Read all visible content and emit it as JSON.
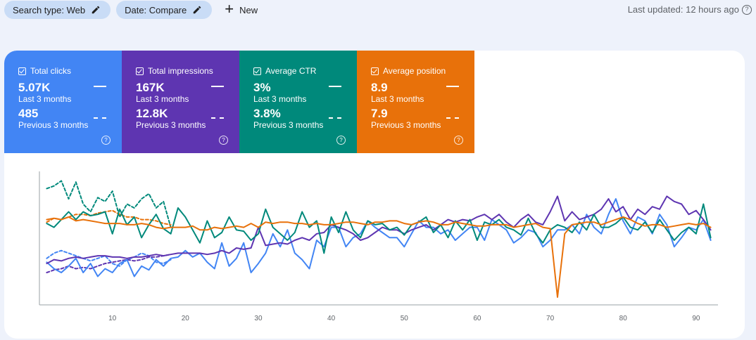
{
  "toolbar": {
    "search_type_label": "Search type: Web",
    "date_label": "Date: Compare",
    "new_label": "New",
    "last_updated": "Last updated: 12 hours ago"
  },
  "cards": [
    {
      "label": "Total clicks",
      "value": "5.07K",
      "period": "Last 3 months",
      "prev_value": "485",
      "prev_period": "Previous 3 months",
      "color": "#4285f4"
    },
    {
      "label": "Total impressions",
      "value": "167K",
      "period": "Last 3 months",
      "prev_value": "12.8K",
      "prev_period": "Previous 3 months",
      "color": "#5e35b1"
    },
    {
      "label": "Average CTR",
      "value": "3%",
      "period": "Last 3 months",
      "prev_value": "3.8%",
      "prev_period": "Previous 3 months",
      "color": "#00897b"
    },
    {
      "label": "Average position",
      "value": "8.9",
      "period": "Last 3 months",
      "prev_value": "7.9",
      "prev_period": "Previous 3 months",
      "color": "#e8710a"
    }
  ],
  "chart_data": {
    "type": "line",
    "xlim": [
      0,
      93
    ],
    "ylim": [
      0,
      100
    ],
    "xticks": [
      10,
      20,
      30,
      40,
      50,
      60,
      70,
      80,
      90
    ],
    "grid": false,
    "series": [
      {
        "metric": "clicks",
        "period": "current",
        "style": "solid",
        "color": "#4285f4",
        "values": [
          33,
          28,
          25,
          30,
          36,
          25,
          32,
          22,
          28,
          25,
          32,
          35,
          22,
          30,
          27,
          35,
          30,
          36,
          37,
          42,
          37,
          40,
          33,
          28,
          48,
          30,
          36,
          48,
          25,
          32,
          40,
          55,
          45,
          58,
          40,
          35,
          28,
          50,
          45,
          60,
          60,
          45,
          52,
          55,
          65,
          60,
          56,
          52,
          52,
          45,
          55,
          65,
          60,
          60,
          55,
          58,
          50,
          55,
          60,
          60,
          50,
          66,
          62,
          58,
          48,
          52,
          58,
          56,
          45,
          50,
          58,
          58,
          62,
          55,
          70,
          60,
          55,
          70,
          82,
          65,
          55,
          68,
          65,
          55,
          70,
          62,
          45,
          52,
          60,
          58,
          66,
          50
        ]
      },
      {
        "metric": "impressions",
        "period": "current",
        "style": "solid",
        "color": "#5e35b1",
        "values": [
          32,
          35,
          34,
          36,
          37,
          36,
          37,
          38,
          38,
          37,
          37,
          36,
          37,
          37,
          38,
          39,
          38,
          39,
          40,
          40,
          40,
          40,
          39,
          40,
          42,
          40,
          44,
          43,
          44,
          60,
          46,
          47,
          48,
          47,
          50,
          52,
          50,
          55,
          56,
          62,
          60,
          58,
          55,
          50,
          52,
          56,
          60,
          58,
          58,
          55,
          58,
          60,
          62,
          58,
          62,
          66,
          64,
          66,
          65,
          68,
          70,
          66,
          70,
          64,
          60,
          66,
          70,
          64,
          62,
          72,
          84,
          65,
          72,
          66,
          68,
          70,
          74,
          82,
          72,
          76,
          66,
          74,
          70,
          76,
          74,
          84,
          80,
          78,
          70,
          73,
          66,
          58
        ]
      },
      {
        "metric": "ctr",
        "period": "current",
        "style": "solid",
        "color": "#00897b",
        "values": [
          63,
          60,
          66,
          72,
          66,
          72,
          69,
          70,
          72,
          55,
          74,
          62,
          68,
          52,
          62,
          70,
          59,
          55,
          75,
          68,
          58,
          48,
          65,
          52,
          56,
          68,
          58,
          57,
          50,
          55,
          74,
          60,
          55,
          50,
          56,
          72,
          60,
          65,
          40,
          68,
          56,
          72,
          58,
          52,
          65,
          62,
          63,
          58,
          60,
          54,
          62,
          64,
          68,
          56,
          62,
          52,
          65,
          58,
          66,
          50,
          64,
          62,
          66,
          60,
          58,
          54,
          67,
          55,
          48,
          58,
          62,
          60,
          56,
          64,
          58,
          70,
          60,
          60,
          63,
          68,
          60,
          58,
          64,
          56,
          66,
          58,
          50,
          56,
          60,
          55,
          78,
          52
        ]
      },
      {
        "metric": "position",
        "period": "current",
        "style": "solid",
        "color": "#e8710a",
        "values": [
          66,
          67,
          66,
          68,
          65,
          66,
          65,
          64,
          63,
          63,
          63,
          62,
          62,
          63,
          62,
          60,
          59,
          60,
          60,
          60,
          61,
          58,
          58,
          60,
          59,
          60,
          61,
          60,
          63,
          60,
          64,
          63,
          64,
          64,
          63,
          63,
          62,
          63,
          62,
          62,
          63,
          64,
          64,
          63,
          62,
          64,
          64,
          65,
          65,
          63,
          62,
          64,
          65,
          64,
          62,
          62,
          64,
          63,
          62,
          61,
          61,
          62,
          62,
          62,
          60,
          61,
          62,
          63,
          60,
          59,
          6,
          55,
          62,
          63,
          64,
          64,
          62,
          64,
          66,
          68,
          66,
          63,
          61,
          62,
          62,
          60,
          61,
          62,
          63,
          62,
          63,
          60
        ]
      },
      {
        "metric": "clicks",
        "period": "previous",
        "style": "dashed",
        "color": "#4285f4",
        "values": [
          36,
          40,
          42,
          40,
          38,
          36,
          34,
          36,
          38,
          32,
          30,
          35,
          37,
          40,
          38,
          33,
          32,
          35
        ]
      },
      {
        "metric": "impressions",
        "period": "previous",
        "style": "dashed",
        "color": "#5e35b1",
        "values": [
          25,
          27,
          28,
          30,
          28,
          29,
          28,
          30,
          32,
          33,
          34,
          35,
          34,
          35,
          37,
          37,
          38,
          39
        ]
      },
      {
        "metric": "ctr",
        "period": "previous",
        "style": "dashed",
        "color": "#00897b",
        "values": [
          90,
          92,
          96,
          82,
          95,
          78,
          72,
          83,
          80,
          88,
          68,
          78,
          75,
          82,
          86,
          75,
          80,
          60
        ]
      },
      {
        "metric": "position",
        "period": "previous",
        "style": "dashed",
        "color": "#e8710a",
        "values": [
          64,
          67,
          66,
          68,
          70,
          70,
          69,
          71,
          72,
          73,
          70,
          68,
          68,
          66,
          66,
          65,
          63,
          62
        ]
      }
    ]
  }
}
